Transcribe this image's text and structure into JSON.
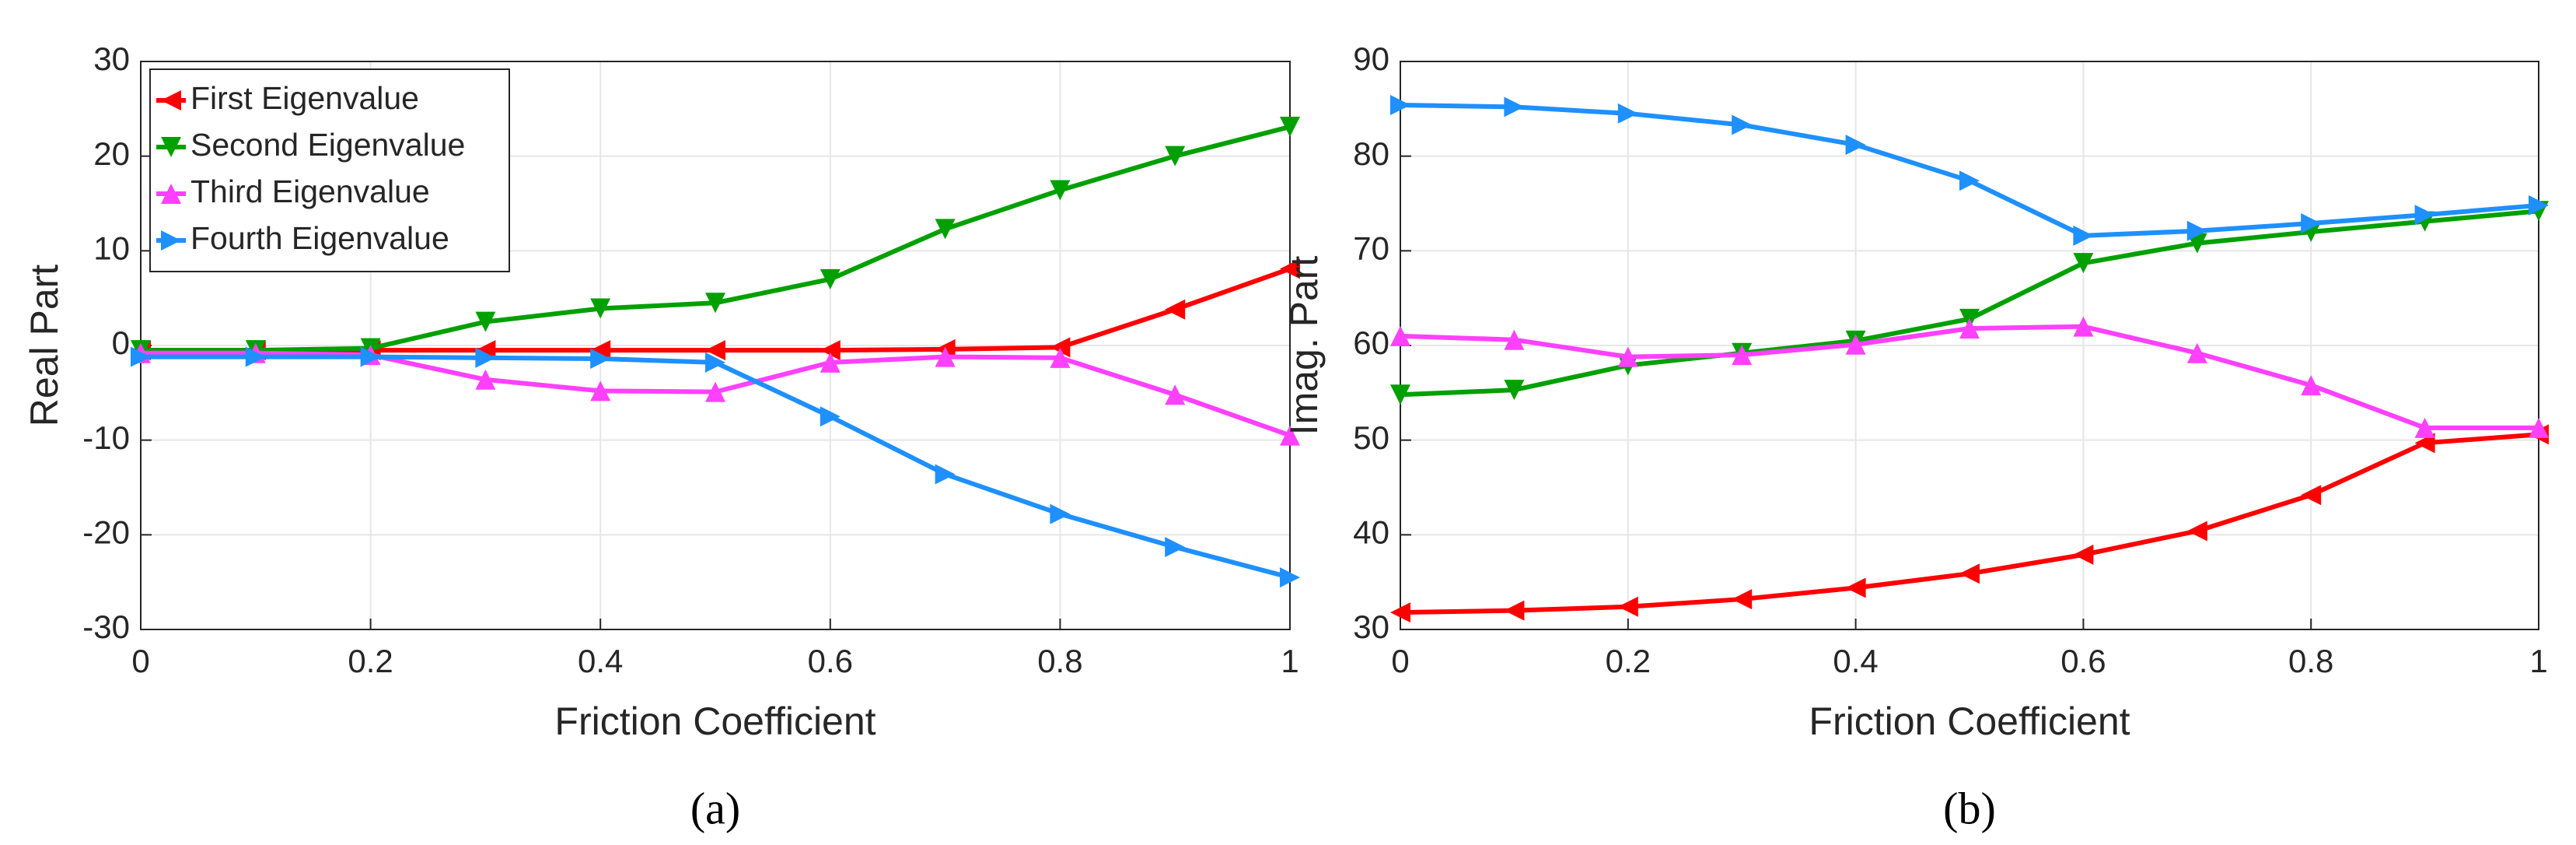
{
  "chart_data": [
    {
      "type": "line",
      "xlabel": "Friction Coefficient",
      "ylabel": "Real Part",
      "caption": "(a)",
      "x": [
        0,
        0.1,
        0.2,
        0.3,
        0.4,
        0.5,
        0.6,
        0.7,
        0.8,
        0.9,
        1
      ],
      "xlim": [
        0,
        1
      ],
      "xticks": [
        0,
        0.2,
        0.4,
        0.6,
        0.8,
        1
      ],
      "ylim": [
        -30,
        30
      ],
      "yticks": [
        -30,
        -20,
        -10,
        0,
        10,
        20,
        30
      ],
      "grid": true,
      "legend": "upper left",
      "series": [
        {
          "name": "First Eigenvalue",
          "color": "#ff0000",
          "marker": "triangle-left",
          "values": [
            -0.5,
            -0.5,
            -0.5,
            -0.5,
            -0.5,
            -0.5,
            -0.5,
            -0.4,
            -0.2,
            3.8,
            8.1
          ]
        },
        {
          "name": "Second Eigenvalue",
          "color": "#00a000",
          "marker": "triangle-down",
          "values": [
            -0.5,
            -0.5,
            -0.3,
            2.5,
            3.9,
            4.5,
            7,
            12.3,
            16.4,
            20,
            23.1
          ]
        },
        {
          "name": "Third Eigenvalue",
          "color": "#ff40ff",
          "marker": "triangle-up",
          "values": [
            -0.8,
            -0.8,
            -1,
            -3.6,
            -4.8,
            -4.9,
            -1.8,
            -1.2,
            -1.3,
            -5.2,
            -9.5
          ]
        },
        {
          "name": "Fourth Eigenvalue",
          "color": "#1e90ff",
          "marker": "triangle-right",
          "values": [
            -1.2,
            -1.2,
            -1.2,
            -1.3,
            -1.4,
            -1.8,
            -7.5,
            -13.6,
            -17.8,
            -21.3,
            -24.5
          ]
        }
      ]
    },
    {
      "type": "line",
      "xlabel": "Friction Coefficient",
      "ylabel": "Imag. Part",
      "caption": "(b)",
      "x": [
        0,
        0.1,
        0.2,
        0.3,
        0.4,
        0.5,
        0.6,
        0.7,
        0.8,
        0.9,
        1
      ],
      "xlim": [
        0,
        1
      ],
      "xticks": [
        0,
        0.2,
        0.4,
        0.6,
        0.8,
        1
      ],
      "ylim": [
        30,
        90
      ],
      "yticks": [
        30,
        40,
        50,
        60,
        70,
        80,
        90
      ],
      "grid": true,
      "series": [
        {
          "color": "#ff0000",
          "marker": "triangle-left",
          "values": [
            31.8,
            32,
            32.4,
            33.2,
            34.4,
            35.9,
            37.9,
            40.4,
            44.2,
            49.7,
            50.6
          ]
        },
        {
          "color": "#00a000",
          "marker": "triangle-down",
          "values": [
            54.8,
            55.3,
            57.9,
            59.2,
            60.5,
            62.8,
            68.7,
            70.8,
            72,
            73.1,
            74.2
          ]
        },
        {
          "color": "#ff40ff",
          "marker": "triangle-up",
          "values": [
            61,
            60.6,
            58.8,
            59,
            60.1,
            61.8,
            62,
            59.2,
            55.8,
            51.3,
            51.3
          ]
        },
        {
          "color": "#1e90ff",
          "marker": "triangle-right",
          "values": [
            85.4,
            85.2,
            84.5,
            83.3,
            81.2,
            77.4,
            71.6,
            72.1,
            72.9,
            73.8,
            74.8
          ]
        }
      ]
    }
  ]
}
